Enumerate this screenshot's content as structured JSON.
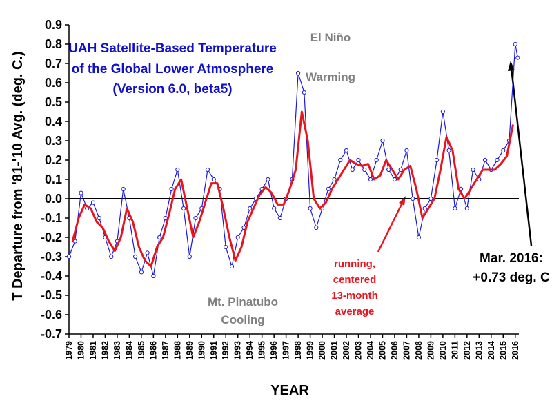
{
  "colors": {
    "monthly": "#1a1adc",
    "running": "#e8141e",
    "title": "#1010c8",
    "annotation_gray": "#808080",
    "annotation_red": "#e8141e",
    "zero_line": "#000000"
  },
  "chart_data": {
    "type": "line",
    "title_lines": [
      "UAH Satellite-Based Temperature",
      "of the Global Lower Atmosphere",
      "(Version 6.0, beta5)"
    ],
    "xlabel": "YEAR",
    "ylabel": "T Departure from '81-'10 Avg. (deg. C.)",
    "ylim": [
      -0.7,
      0.9
    ],
    "xlim": [
      1979,
      2016.3
    ],
    "yticks": [
      -0.7,
      -0.6,
      -0.5,
      -0.4,
      -0.3,
      -0.2,
      -0.1,
      0.0,
      0.1,
      0.2,
      0.3,
      0.4,
      0.5,
      0.6,
      0.7,
      0.8,
      0.9
    ],
    "ytick_labels": [
      "-0.7",
      "-0.6",
      "-0.5",
      "-0.4",
      "-0.3",
      "-0.2",
      "-0.1",
      "0.0",
      "0.1",
      "0.2",
      "0.3",
      "0.4",
      "0.5",
      "0.6",
      "0.7",
      "0.8",
      "0.9"
    ],
    "xticks": [
      "1979",
      "1980",
      "1981",
      "1982",
      "1983",
      "1984",
      "1985",
      "1986",
      "1987",
      "1988",
      "1989",
      "1990",
      "1991",
      "1992",
      "1993",
      "1994",
      "1995",
      "1996",
      "1997",
      "1998",
      "1999",
      "2000",
      "2001",
      "2002",
      "2003",
      "2004",
      "2005",
      "2006",
      "2007",
      "2008",
      "2009",
      "2010",
      "2011",
      "2012",
      "2013",
      "2014",
      "2015",
      "2016"
    ],
    "grid": false,
    "annotations": {
      "el_nino": [
        "El Niño",
        "Warming"
      ],
      "pinatubo": [
        "Mt. Pinatubo",
        "Cooling"
      ],
      "running_label": [
        "running,",
        "centered",
        "13-month",
        "average"
      ],
      "mar2016": [
        "Mar. 2016:",
        "+0.73 deg. C"
      ]
    },
    "series": [
      {
        "style": "monthly-with-markers",
        "x": [
          1979.0,
          1979.5,
          1980.0,
          1980.5,
          1981.0,
          1981.5,
          1982.0,
          1982.5,
          1983.0,
          1983.5,
          1984.0,
          1984.5,
          1985.0,
          1985.5,
          1986.0,
          1986.5,
          1987.0,
          1987.5,
          1988.0,
          1988.5,
          1989.0,
          1989.5,
          1990.0,
          1990.5,
          1991.0,
          1991.5,
          1992.0,
          1992.5,
          1993.0,
          1993.5,
          1994.0,
          1994.5,
          1995.0,
          1995.5,
          1996.0,
          1996.5,
          1997.0,
          1997.5,
          1998.0,
          1998.5,
          1999.0,
          1999.5,
          2000.0,
          2000.5,
          2001.0,
          2001.5,
          2002.0,
          2002.5,
          2003.0,
          2003.5,
          2004.0,
          2004.5,
          2005.0,
          2005.5,
          2006.0,
          2006.5,
          2007.0,
          2007.5,
          2008.0,
          2008.5,
          2009.0,
          2009.5,
          2010.0,
          2010.5,
          2011.0,
          2011.5,
          2012.0,
          2012.5,
          2013.0,
          2013.5,
          2014.0,
          2014.5,
          2015.0,
          2015.5,
          2016.0,
          2016.2
        ],
        "values": [
          -0.3,
          -0.22,
          0.03,
          -0.05,
          -0.02,
          -0.1,
          -0.2,
          -0.3,
          -0.22,
          0.05,
          -0.1,
          -0.3,
          -0.38,
          -0.28,
          -0.4,
          -0.2,
          -0.1,
          0.05,
          0.15,
          -0.05,
          -0.3,
          -0.1,
          -0.05,
          0.15,
          0.1,
          0.05,
          -0.25,
          -0.35,
          -0.2,
          -0.15,
          -0.05,
          0.0,
          0.05,
          0.1,
          -0.05,
          -0.1,
          0.0,
          0.1,
          0.65,
          0.55,
          -0.05,
          -0.15,
          -0.05,
          0.05,
          0.1,
          0.2,
          0.25,
          0.15,
          0.2,
          0.15,
          0.1,
          0.2,
          0.3,
          0.15,
          0.1,
          0.15,
          0.25,
          0.0,
          -0.2,
          -0.05,
          0.0,
          0.2,
          0.45,
          0.25,
          -0.05,
          0.05,
          -0.05,
          0.15,
          0.1,
          0.2,
          0.15,
          0.2,
          0.25,
          0.3,
          0.8,
          0.73
        ]
      },
      {
        "style": "running-mean",
        "x": [
          1979.3,
          1979.8,
          1980.3,
          1980.8,
          1981.3,
          1981.8,
          1982.3,
          1982.8,
          1983.3,
          1983.8,
          1984.3,
          1984.8,
          1985.3,
          1985.8,
          1986.3,
          1986.8,
          1987.3,
          1987.8,
          1988.3,
          1988.8,
          1989.3,
          1989.8,
          1990.3,
          1990.8,
          1991.3,
          1991.8,
          1992.3,
          1992.8,
          1993.3,
          1993.8,
          1994.3,
          1994.8,
          1995.3,
          1995.8,
          1996.3,
          1996.8,
          1997.3,
          1997.8,
          1998.3,
          1998.8,
          1999.3,
          1999.8,
          2000.3,
          2000.8,
          2001.3,
          2001.8,
          2002.3,
          2002.8,
          2003.3,
          2003.8,
          2004.3,
          2004.8,
          2005.3,
          2005.8,
          2006.3,
          2006.8,
          2007.3,
          2007.8,
          2008.3,
          2008.8,
          2009.3,
          2009.8,
          2010.3,
          2010.8,
          2011.3,
          2011.8,
          2012.3,
          2012.8,
          2013.3,
          2013.8,
          2014.3,
          2014.8,
          2015.3,
          2015.8
        ],
        "values": [
          -0.22,
          -0.1,
          -0.03,
          -0.05,
          -0.12,
          -0.15,
          -0.22,
          -0.27,
          -0.2,
          -0.05,
          -0.12,
          -0.25,
          -0.32,
          -0.35,
          -0.25,
          -0.2,
          -0.08,
          0.05,
          0.1,
          -0.05,
          -0.2,
          -0.12,
          -0.02,
          0.08,
          0.08,
          -0.05,
          -0.2,
          -0.32,
          -0.25,
          -0.12,
          -0.05,
          0.02,
          0.06,
          0.03,
          -0.03,
          -0.03,
          0.05,
          0.15,
          0.45,
          0.3,
          0.0,
          -0.05,
          -0.02,
          0.05,
          0.1,
          0.15,
          0.2,
          0.18,
          0.17,
          0.18,
          0.1,
          0.12,
          0.2,
          0.15,
          0.1,
          0.15,
          0.17,
          0.05,
          -0.1,
          -0.05,
          0.0,
          0.15,
          0.32,
          0.25,
          0.05,
          0.0,
          0.05,
          0.1,
          0.15,
          0.15,
          0.15,
          0.18,
          0.22,
          0.38
        ]
      }
    ]
  }
}
